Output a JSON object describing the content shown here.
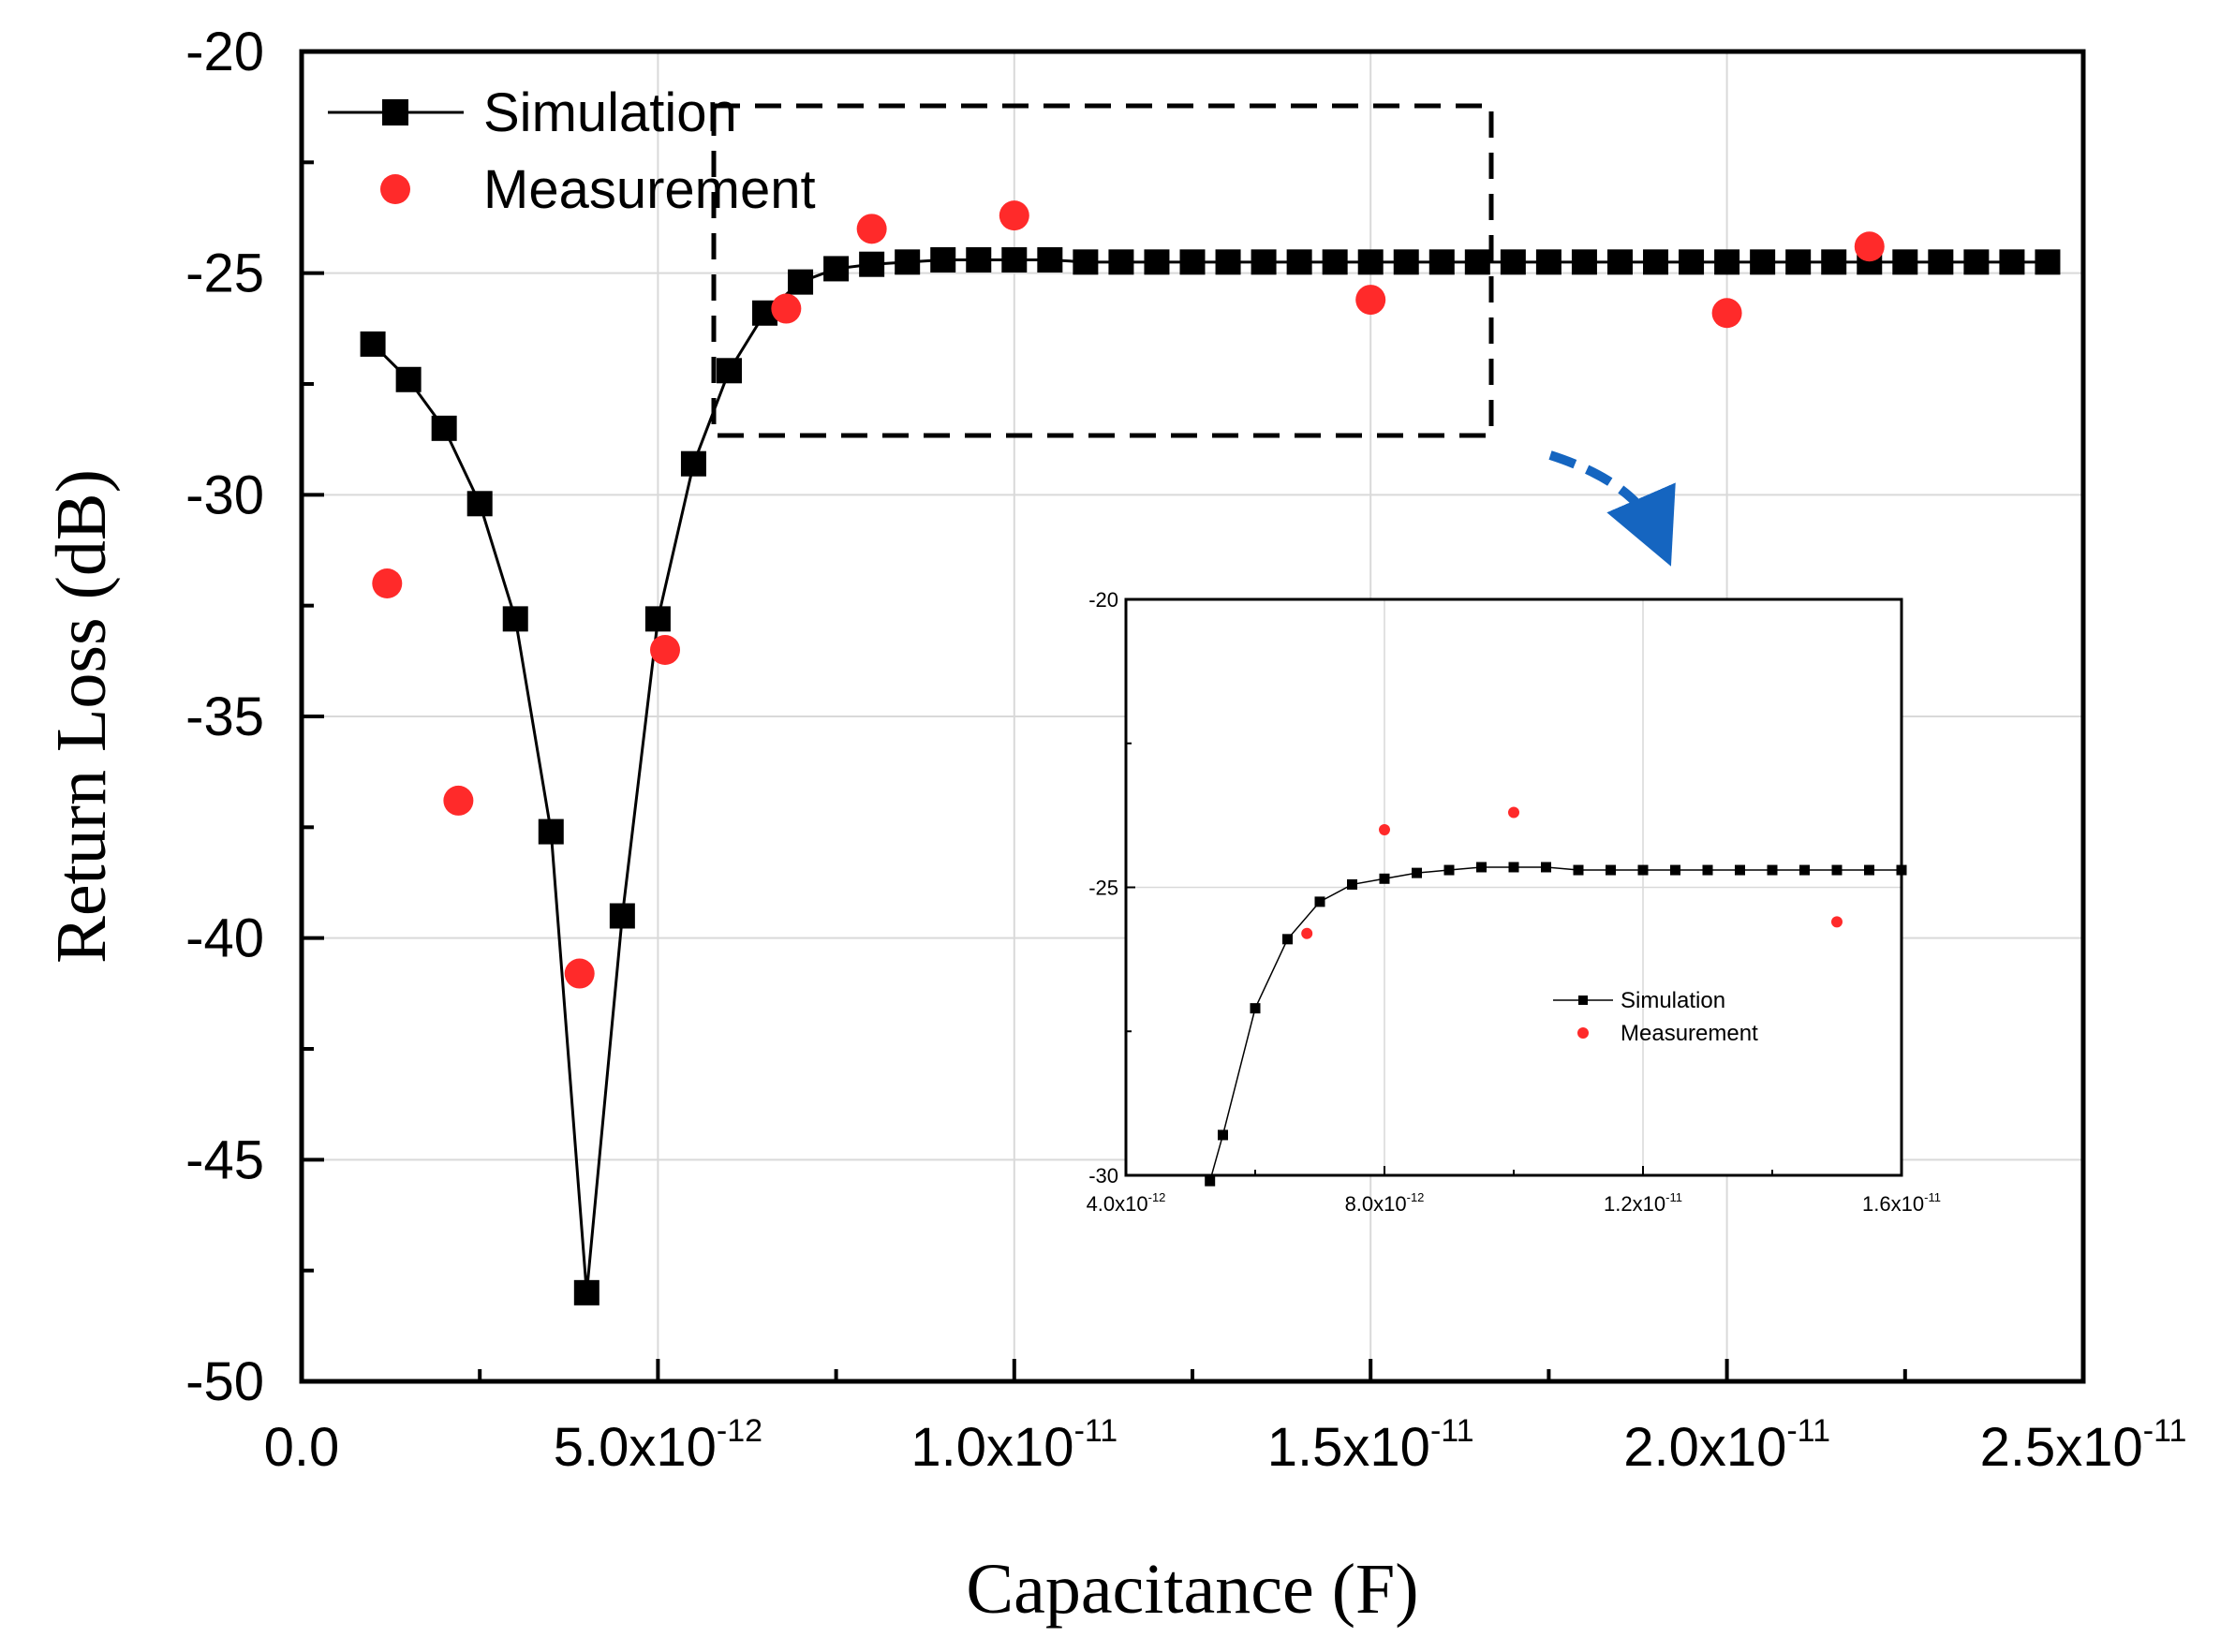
{
  "chart_data": [
    {
      "id": "main",
      "type": "line",
      "xlabel": "Capacitance (F)",
      "ylabel": "Return Loss (dB)",
      "xlim": [
        0,
        2.5e-11
      ],
      "ylim": [
        -50,
        -20
      ],
      "x_ticks": [
        {
          "value": 0,
          "mantissa": "0.0",
          "exp": ""
        },
        {
          "value": 5e-12,
          "mantissa": "5.0x10",
          "exp": "-12"
        },
        {
          "value": 1e-11,
          "mantissa": "1.0x10",
          "exp": "-11"
        },
        {
          "value": 1.5e-11,
          "mantissa": "1.5x10",
          "exp": "-11"
        },
        {
          "value": 2e-11,
          "mantissa": "2.0x10",
          "exp": "-11"
        },
        {
          "value": 2.5e-11,
          "mantissa": "2.5x10",
          "exp": "-11"
        }
      ],
      "y_ticks": [
        {
          "value": -20,
          "label": "-20"
        },
        {
          "value": -25,
          "label": "-25"
        },
        {
          "value": -30,
          "label": "-30"
        },
        {
          "value": -35,
          "label": "-35"
        },
        {
          "value": -40,
          "label": "-40"
        },
        {
          "value": -45,
          "label": "-45"
        },
        {
          "value": -50,
          "label": "-50"
        }
      ],
      "grid": true,
      "legend_position": "top-left",
      "series": [
        {
          "name": "Simulation",
          "style": "line-square",
          "color": "#000000",
          "x": [
            1e-12,
            1.5e-12,
            2e-12,
            2.5e-12,
            3e-12,
            3.5e-12,
            4e-12,
            4.5e-12,
            5e-12,
            5.5e-12,
            6e-12,
            6.5e-12,
            7e-12,
            7.5e-12,
            8e-12,
            8.5e-12,
            9e-12,
            9.5e-12,
            1e-11,
            1.05e-11,
            1.1e-11,
            1.15e-11,
            1.2e-11,
            1.25e-11,
            1.3e-11,
            1.35e-11,
            1.4e-11,
            1.45e-11,
            1.5e-11,
            1.55e-11,
            1.6e-11,
            1.65e-11,
            1.7e-11,
            1.75e-11,
            1.8e-11,
            1.85e-11,
            1.9e-11,
            1.95e-11,
            2e-11,
            2.05e-11,
            2.1e-11,
            2.15e-11,
            2.2e-11,
            2.25e-11,
            2.3e-11,
            2.35e-11,
            2.4e-11,
            2.45e-11
          ],
          "y": [
            -26.6,
            -27.4,
            -28.5,
            -30.2,
            -32.8,
            -37.6,
            -48.0,
            -39.5,
            -32.8,
            -29.3,
            -27.2,
            -25.9,
            -25.2,
            -24.9,
            -24.8,
            -24.75,
            -24.7,
            -24.7,
            -24.7,
            -24.7,
            -24.75,
            -24.75,
            -24.75,
            -24.75,
            -24.75,
            -24.75,
            -24.75,
            -24.75,
            -24.75,
            -24.75,
            -24.75,
            -24.75,
            -24.75,
            -24.75,
            -24.75,
            -24.75,
            -24.75,
            -24.75,
            -24.75,
            -24.75,
            -24.75,
            -24.75,
            -24.75,
            -24.75,
            -24.75,
            -24.75,
            -24.75,
            -24.75
          ]
        },
        {
          "name": "Measurement",
          "style": "dot",
          "color": "#ff2a2a",
          "x": [
            1.2e-12,
            2.2e-12,
            3.9e-12,
            5.1e-12,
            6.8e-12,
            8e-12,
            1e-11,
            1.5e-11,
            2e-11,
            2.2e-11
          ],
          "y": [
            -32.0,
            -36.9,
            -40.8,
            -33.5,
            -25.8,
            -24.0,
            -23.7,
            -25.6,
            -25.9,
            -24.4
          ]
        }
      ]
    },
    {
      "id": "inset",
      "type": "line",
      "xlabel": "",
      "ylabel": "",
      "xlim": [
        4e-12,
        1.6e-11
      ],
      "ylim": [
        -30,
        -20
      ],
      "x_ticks": [
        {
          "value": 4e-12,
          "mantissa": "4.0x10",
          "exp": "-12"
        },
        {
          "value": 8e-12,
          "mantissa": "8.0x10",
          "exp": "-12"
        },
        {
          "value": 1.2e-11,
          "mantissa": "1.2x10",
          "exp": "-11"
        },
        {
          "value": 1.6e-11,
          "mantissa": "1.6x10",
          "exp": "-11"
        }
      ],
      "y_ticks": [
        {
          "value": -20,
          "label": "-20"
        },
        {
          "value": -25,
          "label": "-25"
        },
        {
          "value": -30,
          "label": "-30"
        }
      ],
      "grid": true,
      "legend_position": "lower-right",
      "series": [
        {
          "name": "Simulation",
          "style": "line-square",
          "color": "#000000",
          "x": [
            5.3e-12,
            5.5e-12,
            6e-12,
            6.5e-12,
            7e-12,
            7.5e-12,
            8e-12,
            8.5e-12,
            9e-12,
            9.5e-12,
            1e-11,
            1.05e-11,
            1.1e-11,
            1.15e-11,
            1.2e-11,
            1.25e-11,
            1.3e-11,
            1.35e-11,
            1.4e-11,
            1.45e-11,
            1.5e-11,
            1.55e-11,
            1.6e-11
          ],
          "y": [
            -30.1,
            -29.3,
            -27.1,
            -25.9,
            -25.25,
            -24.95,
            -24.85,
            -24.75,
            -24.7,
            -24.65,
            -24.65,
            -24.65,
            -24.7,
            -24.7,
            -24.7,
            -24.7,
            -24.7,
            -24.7,
            -24.7,
            -24.7,
            -24.7,
            -24.7,
            -24.7
          ]
        },
        {
          "name": "Measurement",
          "style": "dot",
          "color": "#ff2a2a",
          "x": [
            6.8e-12,
            8e-12,
            1e-11,
            1.5e-11
          ],
          "y": [
            -25.8,
            -24.0,
            -23.7,
            -25.6
          ]
        }
      ]
    }
  ],
  "colors": {
    "simulation": "#000000",
    "measurement": "#ff2a2a",
    "zoom_arrow": "#1565c0",
    "grid": "#d9d9d9"
  }
}
